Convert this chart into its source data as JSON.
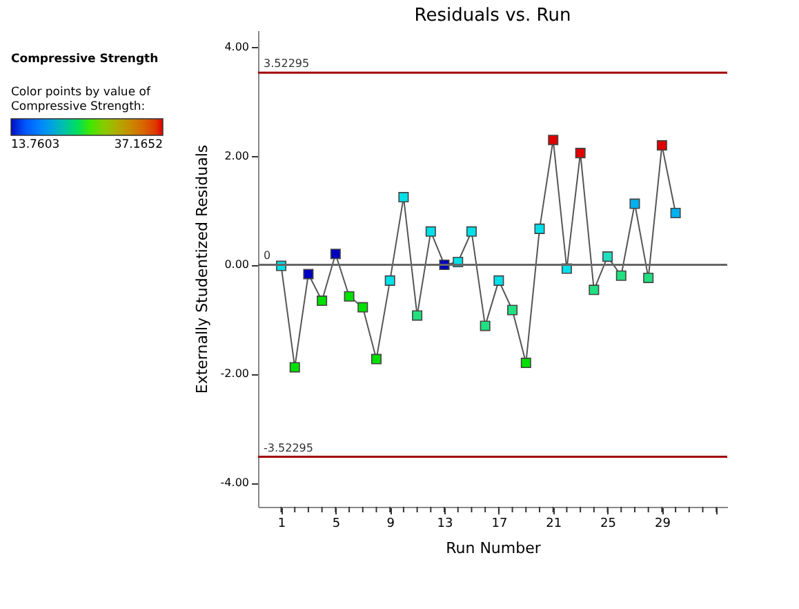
{
  "chart_data": {
    "type": "line",
    "title": "Residuals vs. Run",
    "xlabel": "Run Number",
    "ylabel": "Externally Studentized Residuals",
    "annotations": [
      "Compressive Strength"
    ],
    "clabel": "Color points by value of Compressive Strength:",
    "clim": [
      13.7603,
      37.1652
    ],
    "cticks": [
      13.7603,
      37.1652
    ],
    "x": [
      1,
      2,
      3,
      4,
      5,
      6,
      7,
      8,
      9,
      10,
      11,
      12,
      13,
      14,
      15,
      16,
      17,
      18,
      19,
      20,
      21,
      22,
      23,
      24,
      25,
      26,
      27,
      28,
      29,
      30
    ],
    "series": [
      {
        "color": "#555555",
        "values": [
          -0.02,
          -1.88,
          -0.17,
          -0.66,
          0.2,
          -0.58,
          -0.78,
          -1.73,
          -0.29,
          1.24,
          -0.93,
          0.61,
          0.0,
          0.05,
          0.61,
          -1.12,
          -0.29,
          -0.83,
          -1.8,
          0.66,
          2.29,
          -0.07,
          2.05,
          -0.46,
          0.15,
          -0.2,
          1.12,
          -0.24,
          2.19,
          0.95
        ],
        "colors": [
          "#00e0e8",
          "#00e000",
          "#0000c0",
          "#00e000",
          "#0000c0",
          "#00e000",
          "#00e000",
          "#00e000",
          "#00e0e8",
          "#00e0e8",
          "#20e080",
          "#00e0e8",
          "#0000c0",
          "#00e0e8",
          "#00e0e8",
          "#20e080",
          "#00e0e8",
          "#20e080",
          "#00e000",
          "#00e0e8",
          "#e00000",
          "#00e0e8",
          "#e00000",
          "#20e080",
          "#20e0c0",
          "#20e080",
          "#00b0f0",
          "#20e080",
          "#e00000",
          "#00b0f0"
        ]
      }
    ],
    "marker": "square",
    "line_style": "solid",
    "grid": false,
    "xlim": [
      -0.7,
      33.8
    ],
    "xticks": [
      {
        "value": 1,
        "label": "1"
      },
      {
        "value": 2,
        "label": null
      },
      {
        "value": 3,
        "label": null
      },
      {
        "value": 4,
        "label": null
      },
      {
        "value": 5,
        "label": "5"
      },
      {
        "value": 6,
        "label": null
      },
      {
        "value": 7,
        "label": null
      },
      {
        "value": 8,
        "label": null
      },
      {
        "value": 9,
        "label": "9"
      },
      {
        "value": 10,
        "label": null
      },
      {
        "value": 11,
        "label": null
      },
      {
        "value": 12,
        "label": null
      },
      {
        "value": 13,
        "label": "13"
      },
      {
        "value": 14,
        "label": null
      },
      {
        "value": 15,
        "label": null
      },
      {
        "value": 16,
        "label": null
      },
      {
        "value": 17,
        "label": "17"
      },
      {
        "value": 18,
        "label": null
      },
      {
        "value": 19,
        "label": null
      },
      {
        "value": 20,
        "label": null
      },
      {
        "value": 21,
        "label": "21"
      },
      {
        "value": 22,
        "label": null
      },
      {
        "value": 23,
        "label": null
      },
      {
        "value": 24,
        "label": null
      },
      {
        "value": 25,
        "label": "25"
      },
      {
        "value": 26,
        "label": null
      },
      {
        "value": 27,
        "label": null
      },
      {
        "value": 28,
        "label": null
      },
      {
        "value": 29,
        "label": "29"
      },
      {
        "value": 30,
        "label": null
      },
      {
        "value": 31,
        "label": null
      },
      {
        "value": 32,
        "label": null
      },
      {
        "value": 33,
        "label": null
      }
    ],
    "ylim": [
      -4.44,
      4.3
    ],
    "yticks": [
      {
        "value": -4,
        "label": "-4.00"
      },
      {
        "value": -2,
        "label": "-2.00"
      },
      {
        "value": 0,
        "label": "0.00"
      },
      {
        "value": 2,
        "label": "2.00"
      },
      {
        "value": 4,
        "label": "4.00"
      }
    ],
    "ref_lines": [
      {
        "axis": "y",
        "value": 3.52295,
        "label": "3.52295",
        "color": "#a00000"
      },
      {
        "axis": "y",
        "value": 0,
        "label": "0",
        "color": "#666666"
      },
      {
        "axis": "y",
        "value": -3.52295,
        "label": "-3.52295",
        "color": "#a00000"
      }
    ]
  }
}
